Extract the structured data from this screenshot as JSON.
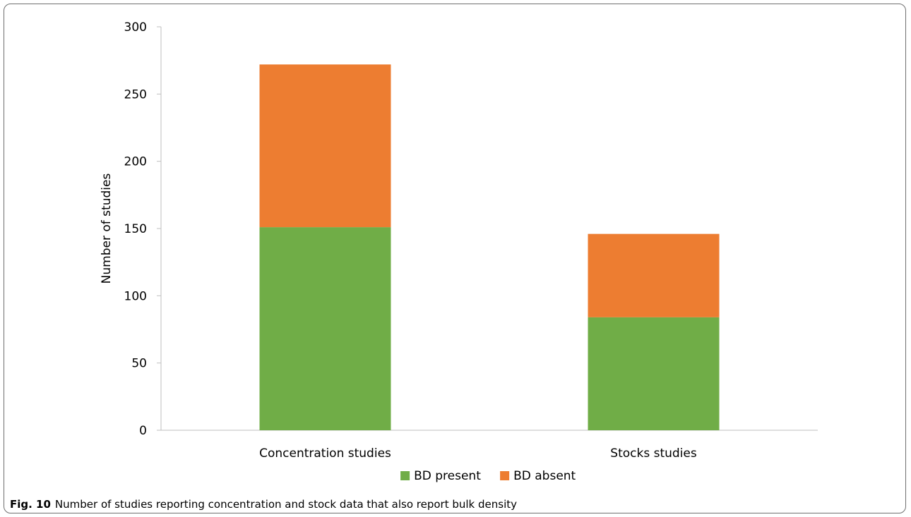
{
  "chart_data": {
    "type": "bar",
    "stacked": true,
    "categories": [
      "Concentration studies",
      "Stocks studies"
    ],
    "series": [
      {
        "name": "BD present",
        "values": [
          151,
          84
        ],
        "color": "#70AD47"
      },
      {
        "name": "BD absent",
        "values": [
          121,
          62
        ],
        "color": "#ED7D31"
      }
    ],
    "ylabel": "Number of studies",
    "xlabel": "",
    "ylim": [
      0,
      300
    ],
    "yticks": [
      0,
      50,
      100,
      150,
      200,
      250,
      300
    ],
    "grid": false,
    "legend": "bottom"
  },
  "caption": {
    "label": "Fig. 10",
    "text": "Number of studies reporting concentration and stock data that also report bulk density"
  }
}
